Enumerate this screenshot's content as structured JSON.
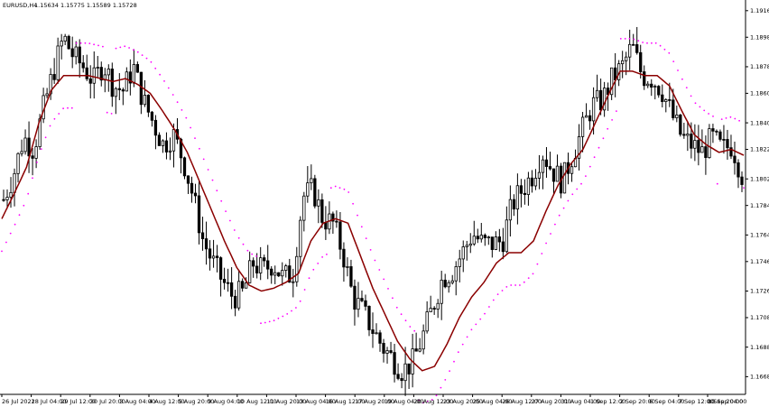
{
  "header": {
    "symbol": "EURUSD,H4",
    "ohlc": "1.15634 1.15775 1.15589 1.15728"
  },
  "colors": {
    "background": "#ffffff",
    "bull_candle_fill": "#ffffff",
    "bear_candle_fill": "#000000",
    "candle_outline": "#000000",
    "ma_line": "#8b0000",
    "sar_dots": "#ff00ff",
    "axis": "#000000"
  },
  "chart_data": {
    "type": "candlestick",
    "instrument": "EURUSD",
    "timeframe": "H4",
    "ylim": [
      1.1656,
      1.1922
    ],
    "y_ticks": [
      1.1916,
      1.1898,
      1.1878,
      1.186,
      1.184,
      1.1822,
      1.1802,
      1.1784,
      1.1764,
      1.1746,
      1.1726,
      1.1708,
      1.1688,
      1.1668
    ],
    "x_ticks": [
      "26 Jul 2021",
      "28 Jul 04:00",
      "29 Jul 12:00",
      "30 Jul 20:00",
      "3 Aug 04:00",
      "4 Aug 12:00",
      "5 Aug 20:00",
      "9 Aug 04:00",
      "10 Aug 12:00",
      "11 Aug 20:00",
      "13 Aug 04:00",
      "16 Aug 12:00",
      "17 Aug 20:00",
      "19 Aug 04:00",
      "20 Aug 12:00",
      "23 Aug 20:00",
      "25 Aug 04:00",
      "26 Aug 12:00",
      "27 Aug 20:00",
      "31 Aug 04:00",
      "1 Sep 12:00",
      "2 Sep 20:00",
      "6 Sep 04:00",
      "7 Sep 12:00",
      "8 Sep 20:00",
      "10 Sep 04:00"
    ],
    "close_path": [
      1.1788,
      1.1805,
      1.183,
      1.1822,
      1.185,
      1.1875,
      1.1898,
      1.1885,
      1.1878,
      1.1868,
      1.188,
      1.1865,
      1.1862,
      1.1878,
      1.1855,
      1.184,
      1.1825,
      1.1832,
      1.1815,
      1.179,
      1.176,
      1.1745,
      1.1732,
      1.1722,
      1.1725,
      1.1745,
      1.174,
      1.1745,
      1.1735,
      1.1738,
      1.179,
      1.1795,
      1.1775,
      1.1772,
      1.1752,
      1.1722,
      1.1712,
      1.17,
      1.1688,
      1.168,
      1.1672,
      1.1678,
      1.1695,
      1.1715,
      1.1735,
      1.174,
      1.1752,
      1.1765,
      1.1758,
      1.1758,
      1.176,
      1.1785,
      1.1795,
      1.1805,
      1.182,
      1.1808,
      1.18,
      1.1818,
      1.1835,
      1.1852,
      1.1855,
      1.187,
      1.1878,
      1.1892,
      1.1872,
      1.187,
      1.1862,
      1.1845,
      1.183,
      1.1825,
      1.182,
      1.183,
      1.1822,
      1.1825,
      1.1805
    ],
    "ma_path": [
      1.1775,
      1.1792,
      1.181,
      1.184,
      1.1862,
      1.1872,
      1.1872,
      1.1872,
      1.187,
      1.1868,
      1.187,
      1.1866,
      1.186,
      1.1848,
      1.1835,
      1.182,
      1.18,
      1.178,
      1.176,
      1.1742,
      1.173,
      1.1726,
      1.1728,
      1.1732,
      1.1738,
      1.176,
      1.1772,
      1.1775,
      1.1772,
      1.175,
      1.1728,
      1.171,
      1.1692,
      1.168,
      1.1672,
      1.1675,
      1.169,
      1.1708,
      1.1722,
      1.1732,
      1.1745,
      1.1752,
      1.1752,
      1.176,
      1.178,
      1.1798,
      1.1812,
      1.1822,
      1.184,
      1.1858,
      1.1875,
      1.1875,
      1.1872,
      1.1872,
      1.1865,
      1.1848,
      1.1832,
      1.1825,
      1.182,
      1.1822,
      1.1818
    ]
  }
}
